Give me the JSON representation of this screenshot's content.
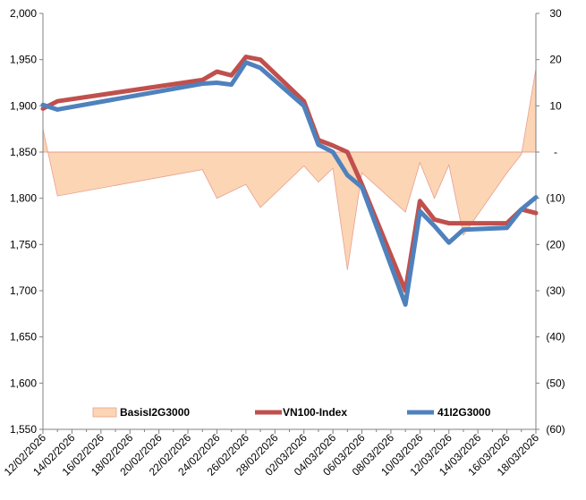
{
  "chart_data": {
    "type": "line",
    "x": [
      "12/02/2026",
      "13/02/2026",
      "23/02/2026",
      "24/02/2026",
      "25/02/2026",
      "26/02/2026",
      "27/02/2026",
      "02/03/2026",
      "03/03/2026",
      "04/03/2026",
      "05/03/2026",
      "06/03/2026",
      "09/03/2026",
      "10/03/2026",
      "11/03/2026",
      "12/03/2026",
      "13/03/2026",
      "16/03/2026",
      "17/03/2026",
      "18/03/2026"
    ],
    "x_tick_labels": [
      "12/02/2026",
      "14/02/2026",
      "16/02/2026",
      "18/02/2026",
      "20/02/2026",
      "22/02/2026",
      "24/02/2026",
      "26/02/2026",
      "28/02/2026",
      "02/03/2026",
      "04/03/2026",
      "06/03/2026",
      "08/03/2026",
      "10/03/2026",
      "12/03/2026",
      "14/03/2026",
      "16/03/2026",
      "18/03/2026"
    ],
    "y_left": {
      "ylim": [
        1550,
        2000
      ],
      "ticks": [
        "1,550",
        "1,600",
        "1,650",
        "1,700",
        "1,750",
        "1,800",
        "1,850",
        "1,900",
        "1,950",
        "2,000"
      ]
    },
    "y_right": {
      "ylim": [
        -60,
        30
      ],
      "ticks": [
        "(60)",
        "(50)",
        "(40)",
        "(30)",
        "(20)",
        "(10)",
        "-",
        "10",
        "20",
        "30"
      ]
    },
    "series": [
      {
        "name": "BasisI2G3000",
        "kind": "area",
        "axis": "right",
        "color": "#fcd5b4",
        "edge_color": "#e6a090",
        "values": [
          5,
          -9.5,
          -3.8,
          -10,
          -8.5,
          -7,
          -12,
          -3,
          -6.5,
          -3.5,
          -25.5,
          -4.5,
          -13,
          -2.3,
          -10,
          -2.8,
          -18,
          -4.5,
          -0.5,
          18
        ]
      },
      {
        "name": "VN100-Index",
        "kind": "line",
        "axis": "left",
        "color": "#c0504d",
        "values": [
          1897,
          1905,
          1928,
          1937,
          1933,
          1953,
          1950,
          1905,
          1863,
          1857,
          1850,
          1815,
          1700,
          1797,
          1777,
          1773,
          1773,
          1773,
          1788,
          1784
        ]
      },
      {
        "name": "41I2G3000",
        "kind": "line",
        "axis": "left",
        "color": "#4f81bd",
        "values": [
          1901,
          1896,
          1924,
          1925,
          1923,
          1947,
          1941,
          1900,
          1858,
          1850,
          1825,
          1812,
          1685,
          1786,
          1770,
          1752,
          1766,
          1768,
          1788,
          1801
        ]
      }
    ],
    "legend_position": "bottom",
    "grid": false
  }
}
